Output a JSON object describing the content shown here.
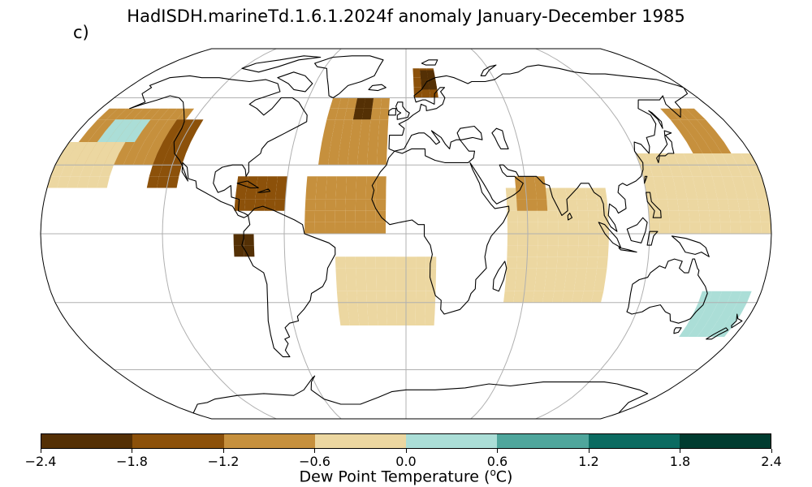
{
  "title": "HadISDH.marineTd.1.6.1.2024f anomaly January-December 1985",
  "panel_label": "c)",
  "colorbar": {
    "label_prefix": "Dew Point Temperature (",
    "label_sup": "o",
    "label_suffix": "C)",
    "ticks": [
      "−2.4",
      "−1.8",
      "−1.2",
      "−0.6",
      "0.0",
      "0.6",
      "1.2",
      "1.8",
      "2.4"
    ],
    "colors": [
      "#543005",
      "#8c510a",
      "#c6903d",
      "#ecd7a1",
      "#abded7",
      "#4fa69c",
      "#0b6b61",
      "#003c30"
    ]
  },
  "map_data": {
    "projection": "Robinson",
    "units": "degC",
    "graticule": {
      "lon_step": 60,
      "lat_step": 30
    },
    "grid_cell_deg": 5,
    "regions": [
      {
        "name": "N Pacific mid-lat",
        "lon": [
          -175,
          -125
        ],
        "lat": [
          30,
          55
        ],
        "class": 2
      },
      {
        "name": "NE Pacific coast",
        "lon": [
          -130,
          -115
        ],
        "lat": [
          20,
          50
        ],
        "class": 1
      },
      {
        "name": "Central Pacific north",
        "lon": [
          -180,
          -150
        ],
        "lat": [
          20,
          40
        ],
        "class": 3
      },
      {
        "name": "Pacific blue patch",
        "lon": [
          -165,
          -145
        ],
        "lat": [
          40,
          48
        ],
        "class": 4
      },
      {
        "name": "N Atlantic",
        "lon": [
          -45,
          -10
        ],
        "lat": [
          30,
          60
        ],
        "class": 2
      },
      {
        "name": "N Atlantic dark",
        "lon": [
          -30,
          -20
        ],
        "lat": [
          50,
          58
        ],
        "class": 0
      },
      {
        "name": "Tropical Atlantic",
        "lon": [
          -50,
          -10
        ],
        "lat": [
          0,
          25
        ],
        "class": 2
      },
      {
        "name": "Caribbean",
        "lon": [
          -85,
          -60
        ],
        "lat": [
          10,
          25
        ],
        "class": 1
      },
      {
        "name": "Norwegian Sea",
        "lon": [
          5,
          20
        ],
        "lat": [
          60,
          75
        ],
        "class": 1
      },
      {
        "name": "Norwegian Sea dark",
        "lon": [
          10,
          20
        ],
        "lat": [
          64,
          70
        ],
        "class": 0
      },
      {
        "name": "NW Pacific",
        "lon": [
          150,
          170
        ],
        "lat": [
          35,
          55
        ],
        "class": 2
      },
      {
        "name": "W Pacific",
        "lon": [
          120,
          180
        ],
        "lat": [
          0,
          35
        ],
        "class": 3
      },
      {
        "name": "Indian Ocean",
        "lon": [
          50,
          100
        ],
        "lat": [
          -30,
          20
        ],
        "class": 3
      },
      {
        "name": "Arabian Sea",
        "lon": [
          55,
          70
        ],
        "lat": [
          10,
          25
        ],
        "class": 2
      },
      {
        "name": "South Atlantic",
        "lon": [
          -35,
          15
        ],
        "lat": [
          -40,
          -10
        ],
        "class": 3
      },
      {
        "name": "Tasman Sea",
        "lon": [
          150,
          175
        ],
        "lat": [
          -45,
          -25
        ],
        "class": 4
      },
      {
        "name": "Peru coast",
        "lon": [
          -85,
          -75
        ],
        "lat": [
          -10,
          0
        ],
        "class": 0
      }
    ]
  }
}
